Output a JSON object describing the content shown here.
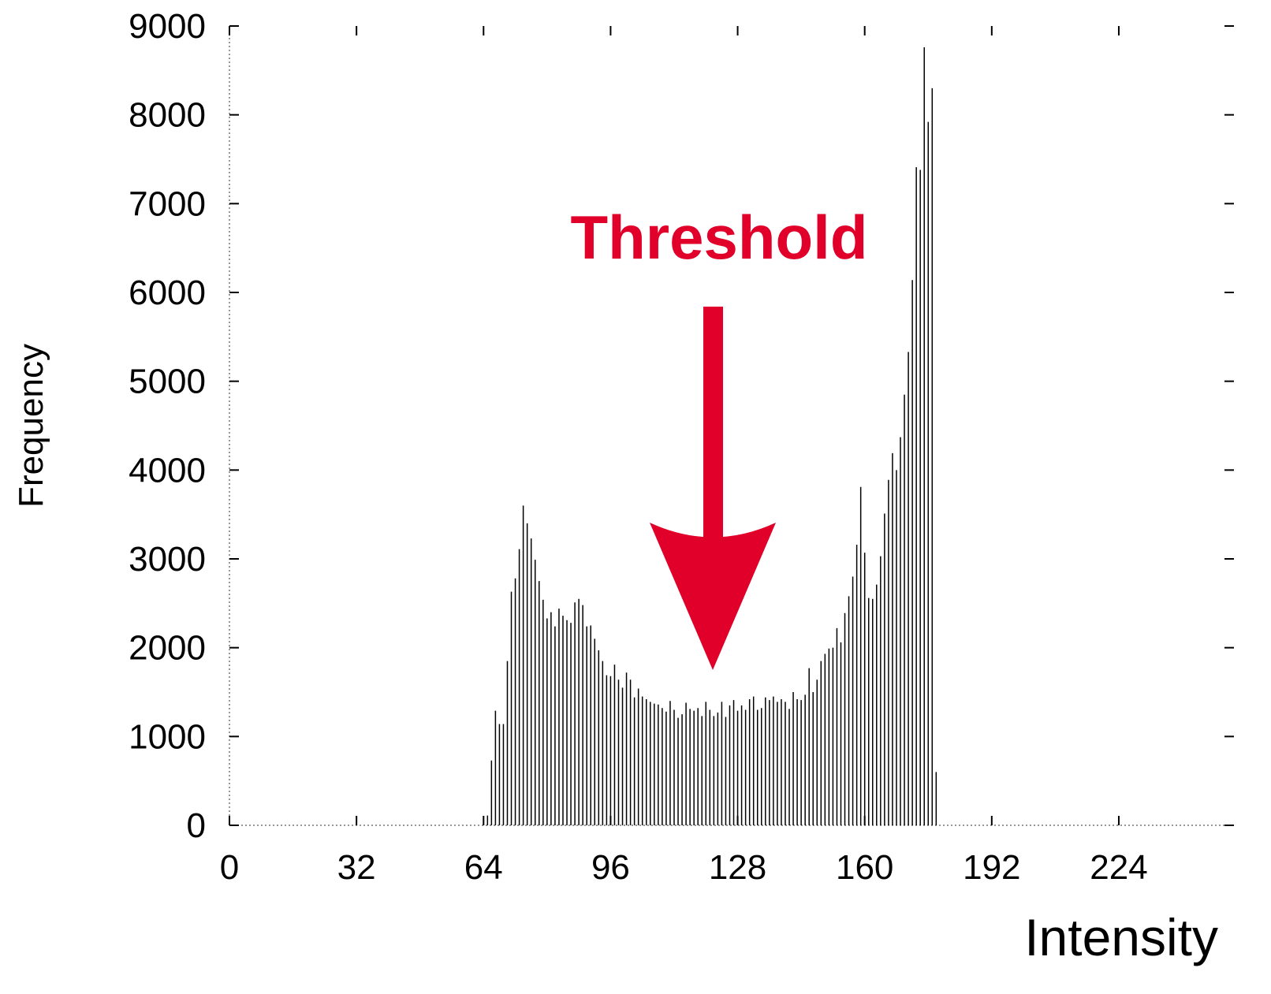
{
  "chart_data": {
    "type": "bar",
    "annotation": "Threshold",
    "xlabel": "Intensity",
    "ylabel": "Frequency",
    "color": "#000000",
    "x": [
      64,
      65,
      66,
      67,
      68,
      69,
      70,
      71,
      72,
      73,
      74,
      75,
      76,
      77,
      78,
      79,
      80,
      81,
      82,
      83,
      84,
      85,
      86,
      87,
      88,
      89,
      90,
      91,
      92,
      93,
      94,
      95,
      96,
      97,
      98,
      99,
      100,
      101,
      102,
      103,
      104,
      105,
      106,
      107,
      108,
      109,
      110,
      111,
      112,
      113,
      114,
      115,
      116,
      117,
      118,
      119,
      120,
      121,
      122,
      123,
      124,
      125,
      126,
      127,
      128,
      129,
      130,
      131,
      132,
      133,
      134,
      135,
      136,
      137,
      138,
      139,
      140,
      141,
      142,
      143,
      144,
      145,
      146,
      147,
      148,
      149,
      150,
      151,
      152,
      153,
      154,
      155,
      156,
      157,
      158,
      159,
      160,
      161,
      162,
      163,
      164,
      165,
      166,
      167,
      168,
      169,
      170,
      171,
      172,
      173,
      174,
      175,
      176,
      177,
      178
    ],
    "values": [
      100,
      110,
      730,
      1290,
      1140,
      1140,
      1850,
      2630,
      2780,
      3110,
      3600,
      3400,
      3230,
      2990,
      2750,
      2540,
      2330,
      2400,
      2240,
      2440,
      2360,
      2310,
      2280,
      2510,
      2550,
      2480,
      2240,
      2250,
      2100,
      1970,
      1850,
      1690,
      1680,
      1810,
      1640,
      1550,
      1720,
      1640,
      1440,
      1540,
      1450,
      1420,
      1390,
      1370,
      1360,
      1320,
      1280,
      1400,
      1300,
      1210,
      1250,
      1380,
      1310,
      1290,
      1320,
      1230,
      1390,
      1300,
      1230,
      1270,
      1390,
      1220,
      1350,
      1410,
      1290,
      1350,
      1300,
      1420,
      1450,
      1300,
      1320,
      1440,
      1410,
      1450,
      1390,
      1420,
      1390,
      1310,
      1500,
      1420,
      1410,
      1470,
      1770,
      1500,
      1640,
      1850,
      1930,
      1990,
      2000,
      2220,
      2060,
      2390,
      2580,
      2800,
      3160,
      3810,
      3070,
      2560,
      2550,
      2710,
      3030,
      3510,
      3890,
      4190,
      4000,
      4370,
      4850,
      5330,
      6140,
      7410,
      7380,
      8760,
      7920,
      8300,
      600
    ],
    "xlim": [
      0,
      253
    ],
    "xticks": [
      0,
      32,
      64,
      96,
      128,
      160,
      192,
      224
    ],
    "ylim": [
      0,
      9000
    ],
    "yticks": [
      0,
      1000,
      2000,
      3000,
      4000,
      5000,
      6000,
      7000,
      8000,
      9000
    ]
  }
}
